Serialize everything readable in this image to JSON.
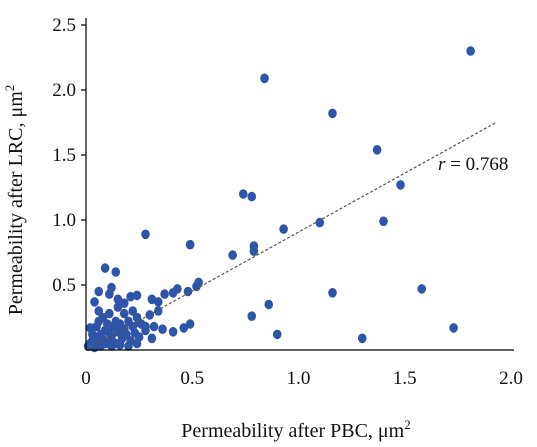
{
  "chart_data": {
    "type": "scatter",
    "xlabel": "Permeability after PBC, μm",
    "xlabel_sup": "2",
    "ylabel": "Permeability after LRC, μm",
    "ylabel_sup": "2",
    "xlim": [
      0,
      2.0
    ],
    "ylim": [
      0,
      2.5
    ],
    "x_ticks": [
      "0",
      "0.5",
      "1.0",
      "1.5",
      "2.0"
    ],
    "y_ticks": [
      "0.5",
      "1.0",
      "1.5",
      "2.0",
      "2.5"
    ],
    "grid": false,
    "legend": "none",
    "annotation": {
      "italic": "r",
      "text": " = 0.768"
    },
    "colors": {
      "points": "#2f55a8",
      "trend": "#555555",
      "axis": "#000000"
    },
    "trendline": {
      "x": [
        0,
        1.93
      ],
      "y": [
        0,
        1.75
      ],
      "style": "dashed"
    },
    "series": [
      {
        "values": [
          [
            0.01,
            0.03
          ],
          [
            0.02,
            0.05
          ],
          [
            0.03,
            0.07
          ],
          [
            0.04,
            0.02
          ],
          [
            0.05,
            0.1
          ],
          [
            0.06,
            0.04
          ],
          [
            0.07,
            0.12
          ],
          [
            0.08,
            0.08
          ],
          [
            0.09,
            0.15
          ],
          [
            0.1,
            0.06
          ],
          [
            0.11,
            0.13
          ],
          [
            0.12,
            0.1
          ],
          [
            0.13,
            0.18
          ],
          [
            0.14,
            0.05
          ],
          [
            0.15,
            0.14
          ],
          [
            0.16,
            0.2
          ],
          [
            0.17,
            0.09
          ],
          [
            0.18,
            0.16
          ],
          [
            0.19,
            0.12
          ],
          [
            0.2,
            0.22
          ],
          [
            0.21,
            0.07
          ],
          [
            0.22,
            0.18
          ],
          [
            0.23,
            0.13
          ],
          [
            0.24,
            0.25
          ],
          [
            0.25,
            0.1
          ],
          [
            0.26,
            0.2
          ],
          [
            0.28,
            0.15
          ],
          [
            0.3,
            0.27
          ],
          [
            0.32,
            0.18
          ],
          [
            0.34,
            0.3
          ],
          [
            0.02,
            0.17
          ],
          [
            0.03,
            0.12
          ],
          [
            0.05,
            0.18
          ],
          [
            0.06,
            0.22
          ],
          [
            0.08,
            0.25
          ],
          [
            0.1,
            0.2
          ],
          [
            0.04,
            0.08
          ],
          [
            0.07,
            0.03
          ],
          [
            0.09,
            0.05
          ],
          [
            0.12,
            0.03
          ],
          [
            0.16,
            0.04
          ],
          [
            0.2,
            0.03
          ],
          [
            0.24,
            0.05
          ],
          [
            0.14,
            0.22
          ],
          [
            0.18,
            0.28
          ],
          [
            0.22,
            0.3
          ],
          [
            0.11,
            0.28
          ],
          [
            0.06,
            0.3
          ],
          [
            0.15,
            0.33
          ],
          [
            0.04,
            0.37
          ],
          [
            0.11,
            0.43
          ],
          [
            0.06,
            0.45
          ],
          [
            0.12,
            0.48
          ],
          [
            0.15,
            0.39
          ],
          [
            0.21,
            0.41
          ],
          [
            0.24,
            0.42
          ],
          [
            0.31,
            0.39
          ],
          [
            0.34,
            0.37
          ],
          [
            0.37,
            0.43
          ],
          [
            0.41,
            0.44
          ],
          [
            0.43,
            0.47
          ],
          [
            0.48,
            0.45
          ],
          [
            0.52,
            0.49
          ],
          [
            0.53,
            0.52
          ],
          [
            0.09,
            0.63
          ],
          [
            0.14,
            0.6
          ],
          [
            0.25,
            0.21
          ],
          [
            0.28,
            0.18
          ],
          [
            0.31,
            0.09
          ],
          [
            0.36,
            0.16
          ],
          [
            0.41,
            0.14
          ],
          [
            0.46,
            0.17
          ],
          [
            0.49,
            0.2
          ],
          [
            0.18,
            0.36
          ],
          [
            0.28,
            0.89
          ],
          [
            0.49,
            0.81
          ],
          [
            0.69,
            0.73
          ],
          [
            0.74,
            1.2
          ],
          [
            0.78,
            1.18
          ],
          [
            0.79,
            0.8
          ],
          [
            0.79,
            0.76
          ],
          [
            0.93,
            0.93
          ],
          [
            1.1,
            0.98
          ],
          [
            1.4,
            0.99
          ],
          [
            0.84,
            2.09
          ],
          [
            1.16,
            1.82
          ],
          [
            1.37,
            1.54
          ],
          [
            1.48,
            1.27
          ],
          [
            1.81,
            2.3
          ],
          [
            0.78,
            0.26
          ],
          [
            0.86,
            0.35
          ],
          [
            0.9,
            0.12
          ],
          [
            1.16,
            0.44
          ],
          [
            1.3,
            0.09
          ],
          [
            1.58,
            0.47
          ],
          [
            1.73,
            0.17
          ]
        ]
      }
    ]
  }
}
